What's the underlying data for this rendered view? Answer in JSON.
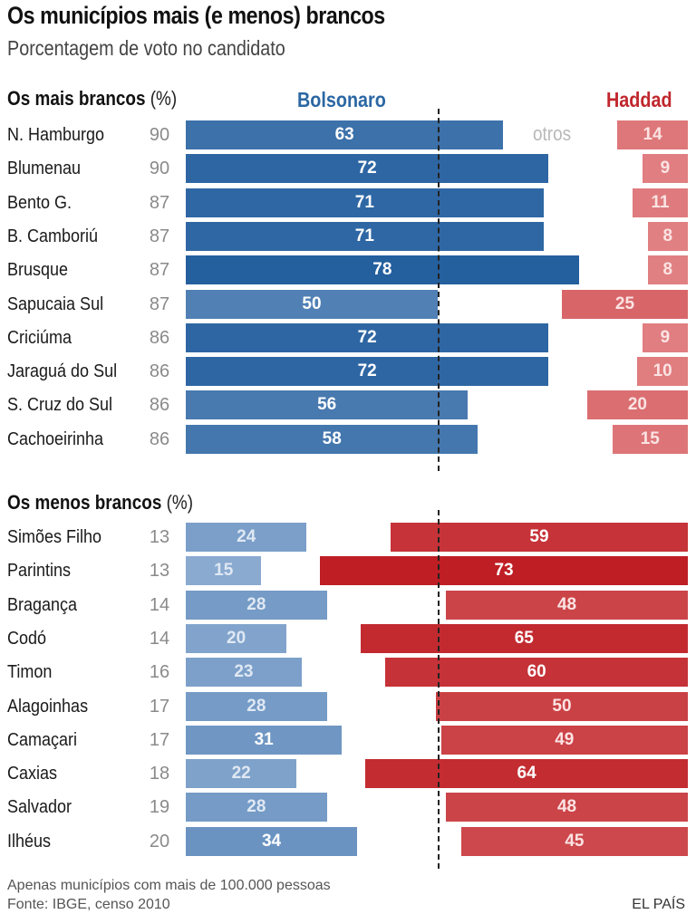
{
  "header": {
    "title": "Os municípios mais (e menos) brancos",
    "subtitle": "Porcentagem de voto no candidato"
  },
  "legend": {
    "bolsonaro": "Bolsonaro",
    "haddad": "Haddad",
    "otros": "otros",
    "bolsonaro_color": "#2b67a3",
    "haddad_color": "#c0272d"
  },
  "footer": {
    "note": "Apenas municípios com mais de 100.000 pessoas",
    "source": "Fonte: IBGE, censo 2010",
    "brand": "EL PAÍS"
  },
  "chart_data": {
    "type": "bar",
    "title": "Os municípios mais (e menos) brancos",
    "subtitle": "Porcentagem de voto no candidato",
    "xlabel": "",
    "ylabel": "",
    "xlim": [
      0,
      100
    ],
    "reference_line": 50,
    "series_names": [
      "Bolsonaro",
      "Haddad"
    ],
    "sections": [
      {
        "title": "Os mais brancos",
        "title_suffix": "(%)",
        "rows": [
          {
            "name": "N. Hamburgo",
            "white_pct": 90,
            "bolsonaro": 63,
            "haddad": 14
          },
          {
            "name": "Blumenau",
            "white_pct": 90,
            "bolsonaro": 72,
            "haddad": 9
          },
          {
            "name": "Bento G.",
            "white_pct": 87,
            "bolsonaro": 71,
            "haddad": 11
          },
          {
            "name": "B. Camboriú",
            "white_pct": 87,
            "bolsonaro": 71,
            "haddad": 8
          },
          {
            "name": "Brusque",
            "white_pct": 87,
            "bolsonaro": 78,
            "haddad": 8
          },
          {
            "name": "Sapucaia Sul",
            "white_pct": 87,
            "bolsonaro": 50,
            "haddad": 25
          },
          {
            "name": "Criciúma",
            "white_pct": 86,
            "bolsonaro": 72,
            "haddad": 9
          },
          {
            "name": "Jaraguá do Sul",
            "white_pct": 86,
            "bolsonaro": 72,
            "haddad": 10
          },
          {
            "name": "S. Cruz do Sul",
            "white_pct": 86,
            "bolsonaro": 56,
            "haddad": 20
          },
          {
            "name": "Cachoeirinha",
            "white_pct": 86,
            "bolsonaro": 58,
            "haddad": 15
          }
        ]
      },
      {
        "title": "Os menos brancos",
        "title_suffix": "(%)",
        "rows": [
          {
            "name": "Simões Filho",
            "white_pct": 13,
            "bolsonaro": 24,
            "haddad": 59
          },
          {
            "name": "Parintins",
            "white_pct": 13,
            "bolsonaro": 15,
            "haddad": 73
          },
          {
            "name": "Bragança",
            "white_pct": 14,
            "bolsonaro": 28,
            "haddad": 48
          },
          {
            "name": "Codó",
            "white_pct": 14,
            "bolsonaro": 20,
            "haddad": 65
          },
          {
            "name": "Timon",
            "white_pct": 16,
            "bolsonaro": 23,
            "haddad": 60
          },
          {
            "name": "Alagoinhas",
            "white_pct": 17,
            "bolsonaro": 28,
            "haddad": 50
          },
          {
            "name": "Camaçari",
            "white_pct": 17,
            "bolsonaro": 31,
            "haddad": 49
          },
          {
            "name": "Caxias",
            "white_pct": 18,
            "bolsonaro": 22,
            "haddad": 64
          },
          {
            "name": "Salvador",
            "white_pct": 19,
            "bolsonaro": 28,
            "haddad": 48
          },
          {
            "name": "Ilhéus",
            "white_pct": 20,
            "bolsonaro": 34,
            "haddad": 45
          }
        ]
      }
    ]
  }
}
